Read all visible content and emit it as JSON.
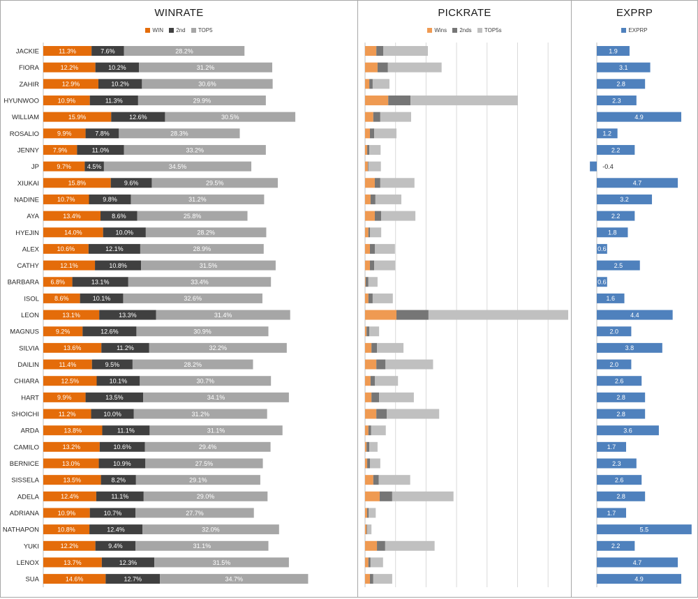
{
  "colors": {
    "win": "#e46c0a",
    "second": "#404040",
    "top5": "#a6a6a6",
    "pick_wins": "#ef9a52",
    "pick_2nds": "#767676",
    "pick_top5s": "#c0c0c0",
    "exprp": "#4f81bd",
    "gridline": "#d9d9d9",
    "axis": "#bfbfbf"
  },
  "chart_data": [
    {
      "id": "winrate",
      "type": "bar",
      "orientation": "horizontal",
      "stacked": true,
      "title": "WINRATE",
      "legend": [
        "WIN",
        "2nd",
        "TOP5"
      ],
      "legend_position": "top",
      "xlim": [
        0,
        60
      ],
      "grid": false,
      "categories": [
        "JACKIE",
        "FIORA",
        "ZAHIR",
        "HYUNWOO",
        "WILLIAM",
        "ROSALIO",
        "JENNY",
        "JP",
        "XIUKAI",
        "NADINE",
        "AYA",
        "HYEJIN",
        "ALEX",
        "CATHY",
        "BARBARA",
        "ISOL",
        "LEON",
        "MAGNUS",
        "SILVIA",
        "DAILIN",
        "CHIARA",
        "HART",
        "SHOICHI",
        "ARDA",
        "CAMILO",
        "BERNICE",
        "SISSELA",
        "ADELA",
        "ADRIANA",
        "NATHAPON",
        "YUKI",
        "LENOX",
        "SUA"
      ],
      "series": [
        {
          "name": "WIN",
          "values": [
            11.3,
            12.2,
            12.9,
            10.9,
            15.9,
            9.9,
            7.9,
            9.7,
            15.8,
            10.7,
            13.4,
            14.0,
            10.6,
            12.1,
            6.8,
            8.6,
            13.1,
            9.2,
            13.6,
            11.4,
            12.5,
            9.9,
            11.2,
            13.8,
            13.2,
            13.0,
            13.5,
            12.4,
            10.9,
            10.8,
            12.2,
            13.7,
            14.6
          ]
        },
        {
          "name": "2nd",
          "values": [
            7.6,
            10.2,
            10.2,
            11.3,
            12.6,
            7.8,
            11.0,
            4.5,
            9.6,
            9.8,
            8.6,
            10.0,
            12.1,
            10.8,
            13.1,
            10.1,
            13.3,
            12.6,
            11.2,
            9.5,
            10.1,
            13.5,
            10.0,
            11.1,
            10.6,
            10.9,
            8.2,
            11.1,
            10.7,
            12.4,
            9.4,
            12.3,
            12.7
          ]
        },
        {
          "name": "TOP5",
          "values": [
            28.2,
            31.2,
            30.6,
            29.9,
            30.5,
            28.3,
            33.2,
            34.5,
            29.5,
            31.2,
            25.8,
            28.2,
            28.9,
            31.5,
            33.4,
            32.6,
            31.4,
            30.9,
            32.2,
            28.2,
            30.7,
            34.1,
            31.2,
            31.1,
            29.4,
            27.5,
            29.1,
            29.0,
            27.7,
            32.0,
            31.1,
            31.5,
            34.7
          ]
        }
      ],
      "data_label_format": "{value}%"
    },
    {
      "id": "pickrate",
      "type": "bar",
      "orientation": "horizontal",
      "stacked": true,
      "title": "PICKRATE",
      "legend": [
        "Wins",
        "2nds",
        "TOP5s"
      ],
      "legend_position": "top",
      "units_note": "unlabeled axis; values estimated in gridline units",
      "xlim": [
        0,
        6.6
      ],
      "gridlines": [
        1,
        2,
        3,
        4,
        5,
        6
      ],
      "grid": true,
      "categories": [
        "JACKIE",
        "FIORA",
        "ZAHIR",
        "HYUNWOO",
        "WILLIAM",
        "ROSALIO",
        "JENNY",
        "JP",
        "XIUKAI",
        "NADINE",
        "AYA",
        "HYEJIN",
        "ALEX",
        "CATHY",
        "BARBARA",
        "ISOL",
        "LEON",
        "MAGNUS",
        "SILVIA",
        "DAILIN",
        "CHIARA",
        "HART",
        "SHOICHI",
        "ARDA",
        "CAMILO",
        "BERNICE",
        "SISSELA",
        "ADELA",
        "ADRIANA",
        "NATHAPON",
        "YUKI",
        "LENOX",
        "SUA"
      ],
      "series": [
        {
          "name": "Wins",
          "values": [
            0.37,
            0.41,
            0.14,
            0.76,
            0.27,
            0.16,
            0.07,
            0.09,
            0.32,
            0.18,
            0.32,
            0.11,
            0.16,
            0.16,
            0.02,
            0.11,
            1.03,
            0.05,
            0.21,
            0.37,
            0.18,
            0.21,
            0.37,
            0.11,
            0.05,
            0.07,
            0.27,
            0.48,
            0.07,
            0.05,
            0.39,
            0.11,
            0.16
          ]
        },
        {
          "name": "2nds",
          "values": [
            0.23,
            0.34,
            0.11,
            0.73,
            0.23,
            0.14,
            0.07,
            0.02,
            0.18,
            0.16,
            0.21,
            0.05,
            0.16,
            0.14,
            0.09,
            0.14,
            1.05,
            0.09,
            0.18,
            0.3,
            0.14,
            0.25,
            0.34,
            0.09,
            0.09,
            0.09,
            0.18,
            0.41,
            0.05,
            0.02,
            0.27,
            0.07,
            0.11
          ]
        },
        {
          "name": "TOP5s",
          "values": [
            1.46,
            1.76,
            0.55,
            3.52,
            1.01,
            0.73,
            0.37,
            0.41,
            1.12,
            0.85,
            1.12,
            0.37,
            0.66,
            0.69,
            0.3,
            0.66,
            4.58,
            0.32,
            0.87,
            1.56,
            0.76,
            1.14,
            1.72,
            0.48,
            0.27,
            0.34,
            1.03,
            2.01,
            0.23,
            0.14,
            1.62,
            0.41,
            0.62
          ]
        }
      ]
    },
    {
      "id": "exprp",
      "type": "bar",
      "orientation": "horizontal",
      "title": "EXPRP",
      "legend": [
        "EXPRP"
      ],
      "legend_position": "top",
      "xlim": [
        -0.4,
        5.5
      ],
      "grid": false,
      "categories": [
        "JACKIE",
        "FIORA",
        "ZAHIR",
        "HYUNWOO",
        "WILLIAM",
        "ROSALIO",
        "JENNY",
        "JP",
        "XIUKAI",
        "NADINE",
        "AYA",
        "HYEJIN",
        "ALEX",
        "CATHY",
        "BARBARA",
        "ISOL",
        "LEON",
        "MAGNUS",
        "SILVIA",
        "DAILIN",
        "CHIARA",
        "HART",
        "SHOICHI",
        "ARDA",
        "CAMILO",
        "BERNICE",
        "SISSELA",
        "ADELA",
        "ADRIANA",
        "NATHAPON",
        "YUKI",
        "LENOX",
        "SUA"
      ],
      "series": [
        {
          "name": "EXPRP",
          "values": [
            1.9,
            3.1,
            2.8,
            2.3,
            4.9,
            1.2,
            2.2,
            -0.4,
            4.7,
            3.2,
            2.2,
            1.8,
            0.6,
            2.5,
            0.6,
            1.6,
            4.4,
            2.0,
            3.8,
            2.0,
            2.6,
            2.8,
            2.8,
            3.6,
            1.7,
            2.3,
            2.6,
            2.8,
            1.7,
            5.5,
            2.2,
            4.7,
            4.9
          ]
        }
      ],
      "data_label_format": "{value:.1f}"
    }
  ]
}
